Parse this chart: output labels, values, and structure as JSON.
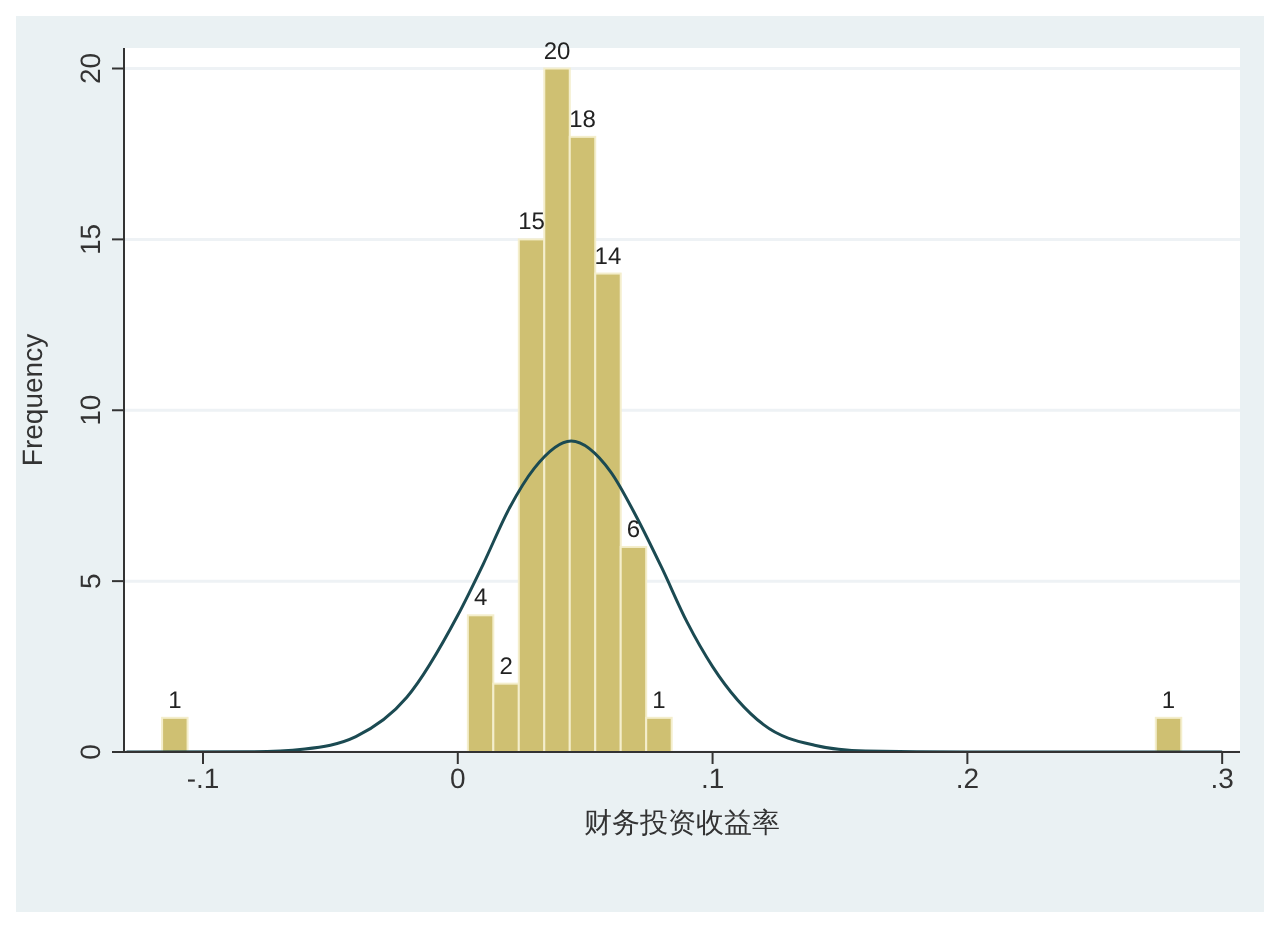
{
  "chart_data": {
    "type": "histogram",
    "xlabel": "财务投资收益率",
    "ylabel": "Frequency",
    "bins": [
      -0.116,
      -0.106,
      -0.096,
      -0.086,
      -0.076,
      -0.066,
      -0.056,
      -0.046,
      -0.036,
      -0.026,
      -0.016,
      -0.006,
      0.004,
      0.014,
      0.024,
      0.034,
      0.044,
      0.054,
      0.064,
      0.074,
      0.084,
      0.094,
      0.104,
      0.114,
      0.124,
      0.134,
      0.144,
      0.154,
      0.164,
      0.174,
      0.184,
      0.194,
      0.204,
      0.214,
      0.224,
      0.234,
      0.244,
      0.254,
      0.264,
      0.274,
      0.284
    ],
    "values": [
      1,
      0,
      0,
      0,
      0,
      0,
      0,
      0,
      0,
      0,
      0,
      0,
      4,
      2,
      15,
      20,
      18,
      14,
      6,
      1,
      0,
      0,
      0,
      0,
      0,
      0,
      0,
      0,
      0,
      0,
      0,
      0,
      0,
      0,
      0,
      0,
      0,
      0,
      0,
      1
    ],
    "value_labels": [
      "1",
      null,
      null,
      null,
      null,
      null,
      null,
      null,
      null,
      null,
      null,
      null,
      "4",
      "2",
      "15",
      "20",
      "18",
      "14",
      "6",
      "1",
      null,
      null,
      null,
      null,
      null,
      null,
      null,
      null,
      null,
      null,
      null,
      null,
      null,
      null,
      null,
      null,
      null,
      null,
      null,
      "1"
    ],
    "color": "#cfc072",
    "series": [
      {
        "type": "line",
        "color": "#1b4a52",
        "x": [
          -0.13,
          -0.08,
          -0.06,
          -0.04,
          -0.02,
          0,
          0.01,
          0.02,
          0.03,
          0.0445,
          0.06,
          0.07,
          0.08,
          0.09,
          0.1,
          0.12,
          0.14,
          0.16,
          0.2,
          0.3
        ],
        "values": [
          0,
          0.01,
          0.09,
          0.45,
          1.6,
          4,
          5.5,
          7.1,
          8.3,
          9.1,
          8.2,
          6.9,
          5.4,
          3.8,
          2.5,
          0.8,
          0.2,
          0.03,
          0,
          0
        ]
      }
    ],
    "xlim": [
      -0.131,
      0.307
    ],
    "xticks": [
      {
        "value": -0.1,
        "label": "-.1"
      },
      {
        "value": 0,
        "label": "0"
      },
      {
        "value": 0.1,
        "label": ".1"
      },
      {
        "value": 0.2,
        "label": ".2"
      },
      {
        "value": 0.3,
        "label": ".3"
      }
    ],
    "ylim": [
      0,
      20.6
    ],
    "yticks": [
      0,
      5,
      10,
      15,
      20
    ],
    "grid": "y",
    "legend": false,
    "marker": "none",
    "line_style": "solid"
  }
}
